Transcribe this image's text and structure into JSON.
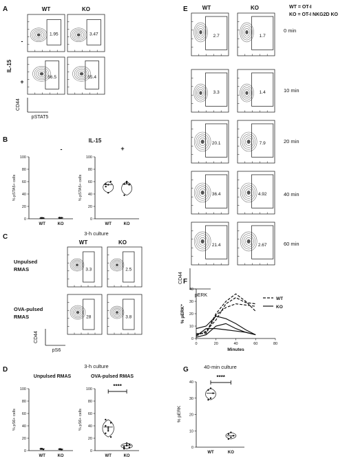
{
  "colors": {
    "ink": "#111111",
    "contour": "#777777",
    "violin": "#333333"
  },
  "chart_data": [
    {
      "panel": "A",
      "type": "flow_contour",
      "col_labels": [
        "WT",
        "KO"
      ],
      "row_group_label": "IL-15",
      "row_labels": [
        "-",
        "+"
      ],
      "x_axis": "pSTAT5",
      "y_axis": "CD44",
      "values": [
        [
          "1.95",
          "3.47"
        ],
        [
          "56.5",
          "55.4"
        ]
      ]
    },
    {
      "panel": "B",
      "type": "violin",
      "title": "IL-15",
      "subplot_labels": [
        "-",
        "+"
      ],
      "categories": [
        "WT",
        "KO"
      ],
      "ylabel": "% pSTA5+ cells",
      "ylim": [
        0,
        100
      ],
      "yticks": [
        "0",
        "20",
        "40",
        "60",
        "80",
        "100"
      ],
      "series": [
        {
          "group": "-",
          "values": [
            [
              1.5,
              1.0,
              1.2,
              0.8,
              1.4
            ],
            [
              1.8,
              1.3,
              1.6,
              1.1,
              1.5
            ]
          ]
        },
        {
          "group": "+",
          "values": [
            [
              56,
              55,
              60,
              52,
              42
            ],
            [
              56,
              60,
              55,
              38,
              58
            ]
          ]
        }
      ]
    },
    {
      "panel": "C",
      "type": "flow_contour",
      "title": "3-h culture",
      "col_labels": [
        "WT",
        "KO"
      ],
      "row_labels": [
        "Unpulsed\nRMAS",
        "OVA-pulsed\nRMAS"
      ],
      "x_axis": "pS6",
      "y_axis": "CD44",
      "values": [
        [
          "3.3",
          "2.5"
        ],
        [
          "28",
          "3.8"
        ]
      ]
    },
    {
      "panel": "D",
      "type": "violin",
      "title": "3-h culture",
      "subplot_titles": [
        "Unpulsed RMAS",
        "OVA-pulsed RMAS"
      ],
      "categories": [
        "WT",
        "KO"
      ],
      "ylabel": "% pS6+ cells",
      "ylim": [
        0,
        100
      ],
      "yticks": [
        "0",
        "20",
        "40",
        "60",
        "80",
        "100"
      ],
      "significance": "****",
      "series": [
        {
          "group": "Unpulsed RMAS",
          "values": [
            [
              2.5,
              3.0,
              2.0,
              3.2,
              2.8
            ],
            [
              2.2,
              2.5,
              1.8,
              2.6,
              2.0
            ]
          ]
        },
        {
          "group": "OVA-pulsed RMAS",
          "values": [
            [
              28,
              35,
              45,
              40,
              32,
              22,
              50,
              38
            ],
            [
              6,
              8,
              10,
              4,
              12,
              5,
              3,
              9
            ]
          ]
        }
      ]
    },
    {
      "panel": "E",
      "type": "flow_contour",
      "col_labels": [
        "WT",
        "KO"
      ],
      "legend_lines": [
        "WT = OT-I",
        "KO = OT-I NKG2D KO"
      ],
      "row_labels": [
        "0 min",
        "10 min",
        "20 min",
        "40 min",
        "60 min"
      ],
      "x_axis": "pERK",
      "y_axis": "CD44",
      "values": [
        [
          "2.7",
          "1.7"
        ],
        [
          "3.3",
          "1.4"
        ],
        [
          "20.1",
          "7.9"
        ],
        [
          "36.4",
          "4.92"
        ],
        [
          "21.4",
          "2.67"
        ]
      ]
    },
    {
      "panel": "F",
      "type": "line",
      "xlabel": "Minutes",
      "ylabel": "% pERK⁺",
      "xlim": [
        0,
        80
      ],
      "ylim": [
        0,
        40
      ],
      "xticks": [
        "0",
        "20",
        "40",
        "60",
        "80"
      ],
      "yticks": [
        "0",
        "10",
        "20",
        "30",
        "40"
      ],
      "x": [
        0,
        10,
        20,
        30,
        40,
        50,
        60
      ],
      "legend": [
        "WT",
        "KO"
      ],
      "series": [
        {
          "group": "WT",
          "values": [
            3,
            5,
            20,
            30,
            36,
            30,
            22
          ]
        },
        {
          "group": "WT",
          "values": [
            2,
            6,
            15,
            28,
            33,
            29,
            28
          ]
        },
        {
          "group": "WT",
          "values": [
            4,
            4,
            19,
            25,
            28,
            27,
            26
          ]
        },
        {
          "group": "KO",
          "values": [
            8,
            10,
            18,
            16,
            12,
            7,
            3
          ]
        },
        {
          "group": "KO",
          "values": [
            2,
            8,
            8,
            7,
            6,
            5,
            3
          ]
        },
        {
          "group": "KO",
          "values": [
            1,
            3,
            10,
            12,
            8,
            5,
            3
          ]
        }
      ]
    },
    {
      "panel": "G",
      "type": "violin",
      "title": "40-min culture",
      "categories": [
        "WT",
        "KO"
      ],
      "ylabel": "% pERK",
      "ylim": [
        0,
        40
      ],
      "yticks": [
        "0",
        "10",
        "20",
        "30",
        "40"
      ],
      "significance": "****",
      "series": [
        {
          "group": "40-min",
          "values": [
            [
              29,
              30,
              33,
              35,
              36
            ],
            [
              5,
              6,
              7,
              8,
              9
            ]
          ]
        }
      ]
    }
  ]
}
